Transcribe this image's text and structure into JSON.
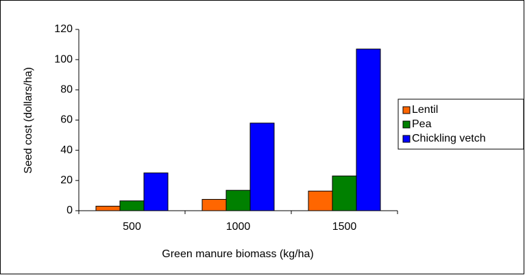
{
  "chart_data": {
    "type": "bar",
    "xlabel": "Green manure biomass (kg/ha)",
    "ylabel": "Seed cost (dollars/ha)",
    "categories": [
      "500",
      "1000",
      "1500"
    ],
    "series": [
      {
        "name": "Lentil",
        "color": "#ff6600",
        "values": [
          3,
          7.5,
          13
        ]
      },
      {
        "name": "Pea",
        "color": "#008000",
        "values": [
          6.5,
          13.5,
          23
        ]
      },
      {
        "name": "Chickling vetch",
        "color": "#0000ff",
        "values": [
          25,
          58,
          107
        ]
      }
    ],
    "ylim": [
      0,
      120
    ],
    "yticks": [
      0,
      20,
      40,
      60,
      80,
      100,
      120
    ],
    "grid": false,
    "legend": "right"
  }
}
